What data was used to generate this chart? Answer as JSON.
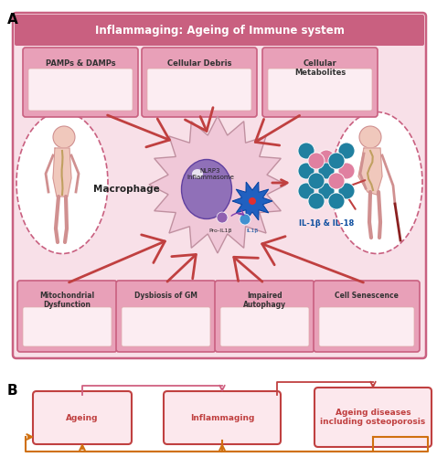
{
  "title_A": "Inflammaging: Ageing of Immune system",
  "title_A_bg": "#c96080",
  "title_A_color": "white",
  "panel_A_bg": "#f8e0e8",
  "panel_A_border": "#c96080",
  "top_labels": [
    "PAMPs & DAMPs",
    "Cellular Debris",
    "Cellular\nMetabolites"
  ],
  "bot_labels": [
    "Mitochondrial\nDysfunction",
    "Dysbiosis of GM",
    "Impaired\nAutophagy",
    "Cell Senescence"
  ],
  "box_bg": "#e8a0b8",
  "box_border": "#c96080",
  "inner_box_bg": "#fcedf2",
  "macrophage_label": "Macrophage",
  "nlrp3_label": "NLRP3\nInflammasome",
  "pro_il1b_label": "Pro-IL1β",
  "il1b_label": "IL1β",
  "il18_label": "IL-1β & IL-18",
  "il18_color": "#1050a0",
  "arrow_color": "#c04040",
  "panel_B_label": "B",
  "panel_A_label": "A",
  "box_B_labels": [
    "Ageing",
    "Inflammaging",
    "Ageing diseases\nincluding osteoporosis"
  ],
  "box_B_bg": "#fce8ed",
  "box_B_border": "#c04040",
  "box_B_text_color": "#c04040",
  "orange_arrow_color": "#d07010",
  "red_arrow_color": "#c04040",
  "pink_arrow_color": "#d06080",
  "cell_body_color": "#f0c8d8",
  "nucleus_color": "#9878c0",
  "organelle_color": "#2060a0",
  "dot_teal": "#2080a0",
  "dot_pink": "#e080a0",
  "dot_green": "#60b040",
  "dot_red": "#e03060"
}
